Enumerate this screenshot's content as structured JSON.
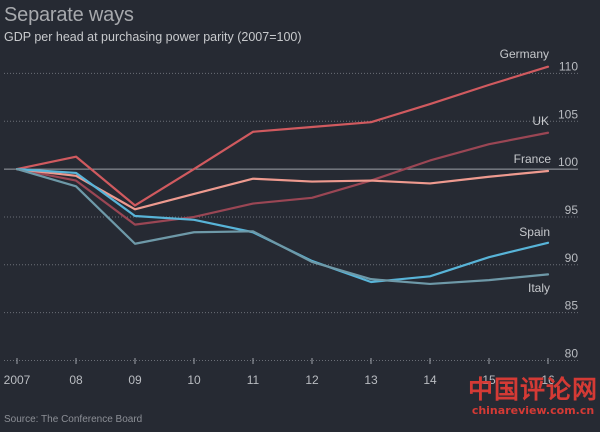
{
  "header": {
    "title": "Separate ways",
    "subtitle": "GDP per head at purchasing power parity (2007=100)"
  },
  "source": "Source: The Conference Board",
  "watermark": {
    "main": "中国评论网",
    "url": "chinareview.com.cn"
  },
  "chart_data": {
    "type": "line",
    "title": "Separate ways",
    "subtitle": "GDP per head at purchasing power parity (2007=100)",
    "x": [
      "2007",
      "08",
      "09",
      "10",
      "11",
      "12",
      "13",
      "14",
      "15",
      "16"
    ],
    "ylim": [
      80,
      110
    ],
    "yticks": [
      80,
      85,
      90,
      95,
      100,
      105,
      110
    ],
    "grid": true,
    "series": [
      {
        "name": "Germany",
        "color": "#d05a5f",
        "values": [
          100,
          101.3,
          96.2,
          100.0,
          103.9,
          104.4,
          104.9,
          106.8,
          108.8,
          110.7
        ]
      },
      {
        "name": "UK",
        "color": "#9a4654",
        "values": [
          100,
          98.8,
          94.2,
          95.0,
          96.4,
          97.0,
          98.8,
          100.9,
          102.6,
          103.8
        ]
      },
      {
        "name": "France",
        "color": "#ee9a8f",
        "values": [
          100,
          99.3,
          95.8,
          97.4,
          99.0,
          98.7,
          98.8,
          98.5,
          99.2,
          99.8
        ]
      },
      {
        "name": "Spain",
        "color": "#58b4d8",
        "values": [
          100,
          99.6,
          95.1,
          94.7,
          93.4,
          90.4,
          88.2,
          88.8,
          90.8,
          92.3
        ]
      },
      {
        "name": "Italy",
        "color": "#6e99a8",
        "values": [
          100,
          98.2,
          92.2,
          93.4,
          93.5,
          90.3,
          88.5,
          88.0,
          88.4,
          89.0
        ]
      }
    ]
  }
}
